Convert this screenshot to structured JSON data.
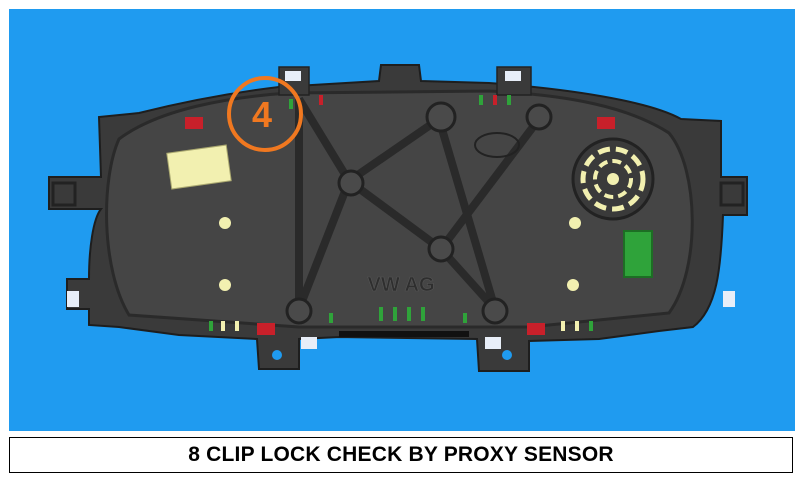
{
  "figure": {
    "marker_number": "4",
    "emboss_text": "VW AG",
    "caption": "8 CLIP LOCK CHECK BY PROXY SENSOR"
  },
  "colors": {
    "background_panel": "#1f9bf0",
    "housing": "#3c3c3c",
    "marker_ring": "#f07820",
    "connector": "#f2f0b0",
    "green_module": "#2fa33a",
    "red_clip": "#c8202a",
    "white_clip": "#e8eef8"
  }
}
